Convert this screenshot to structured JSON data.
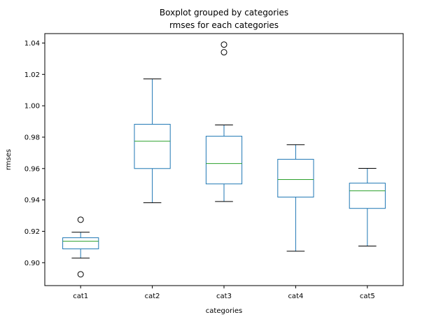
{
  "chart_data": {
    "type": "boxplot",
    "title": "Boxplot grouped by categories",
    "subtitle": "rmses for each categories",
    "xlabel": "categories",
    "ylabel": "rmses",
    "ylim": [
      0.8854,
      1.046
    ],
    "yticks": [
      0.9,
      0.92,
      0.94,
      0.96,
      0.98,
      1.0,
      1.02,
      1.04
    ],
    "ytick_labels": [
      "0.90",
      "0.92",
      "0.94",
      "0.96",
      "0.98",
      "1.00",
      "1.02",
      "1.04"
    ],
    "grid": false,
    "legend": "none",
    "colors": {
      "box": "#1f77b4",
      "median": "#2ca02c",
      "whisker_cap": "#000000",
      "outlier": "#000000"
    },
    "categories": [
      "cat1",
      "cat2",
      "cat3",
      "cat4",
      "cat5"
    ],
    "boxes": [
      {
        "category": "cat1",
        "whisker_low": 0.9029,
        "q1": 0.9088,
        "median": 0.9137,
        "q3": 0.9159,
        "whisker_high": 0.9194,
        "outliers": [
          0.9274,
          0.8926
        ]
      },
      {
        "category": "cat2",
        "whisker_low": 0.9382,
        "q1": 0.96,
        "median": 0.9774,
        "q3": 0.9882,
        "whisker_high": 1.0171,
        "outliers": []
      },
      {
        "category": "cat3",
        "whisker_low": 0.939,
        "q1": 0.9502,
        "median": 0.9632,
        "q3": 0.9806,
        "whisker_high": 0.9878,
        "outliers": [
          1.039,
          1.0341
        ]
      },
      {
        "category": "cat4",
        "whisker_low": 0.9073,
        "q1": 0.9418,
        "median": 0.953,
        "q3": 0.9659,
        "whisker_high": 0.9752,
        "outliers": []
      },
      {
        "category": "cat5",
        "whisker_low": 0.9106,
        "q1": 0.9346,
        "median": 0.9458,
        "q3": 0.9507,
        "whisker_high": 0.9601,
        "outliers": []
      }
    ]
  }
}
